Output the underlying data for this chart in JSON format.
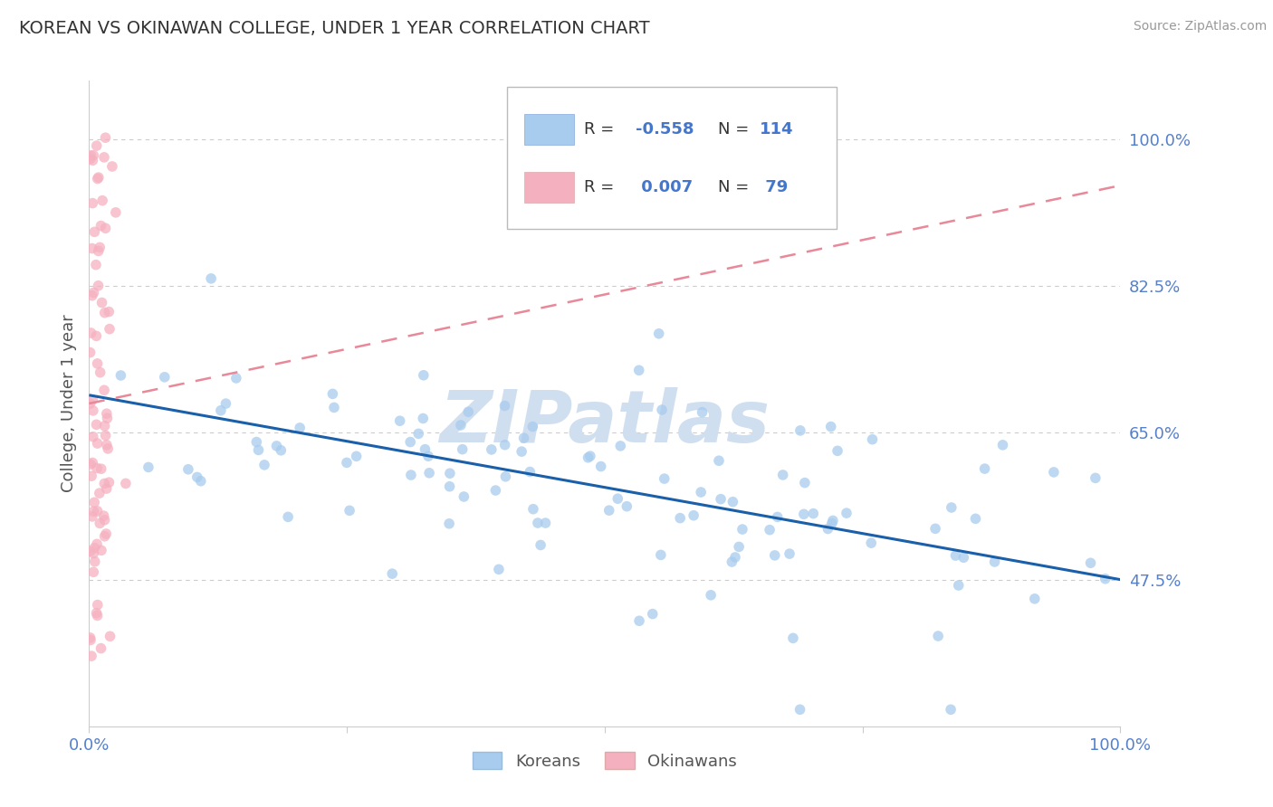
{
  "title": "KOREAN VS OKINAWAN COLLEGE, UNDER 1 YEAR CORRELATION CHART",
  "source_text": "Source: ZipAtlas.com",
  "ylabel": "College, Under 1 year",
  "xlim": [
    0.0,
    1.0
  ],
  "ylim": [
    0.3,
    1.07
  ],
  "yticks": [
    0.475,
    0.65,
    0.825,
    1.0
  ],
  "ytick_labels": [
    "47.5%",
    "65.0%",
    "82.5%",
    "100.0%"
  ],
  "korean_R": -0.558,
  "korean_N": 114,
  "okinawan_R": 0.007,
  "okinawan_N": 79,
  "korean_color": "#a8ccee",
  "okinawan_color": "#f5b0c0",
  "korean_line_color": "#1a5faa",
  "okinawan_line_color": "#e88898",
  "watermark": "ZIPatlas",
  "watermark_color": "#d0dff0",
  "background_color": "#ffffff",
  "grid_color": "#cccccc",
  "title_color": "#333333",
  "axis_label_color": "#555555",
  "tick_color": "#5580cc",
  "korean_line_start": 0.695,
  "korean_line_end": 0.475,
  "okinawan_line_x0": 0.0,
  "okinawan_line_y0": 0.685,
  "okinawan_line_x1": 1.0,
  "okinawan_line_y1": 0.945
}
